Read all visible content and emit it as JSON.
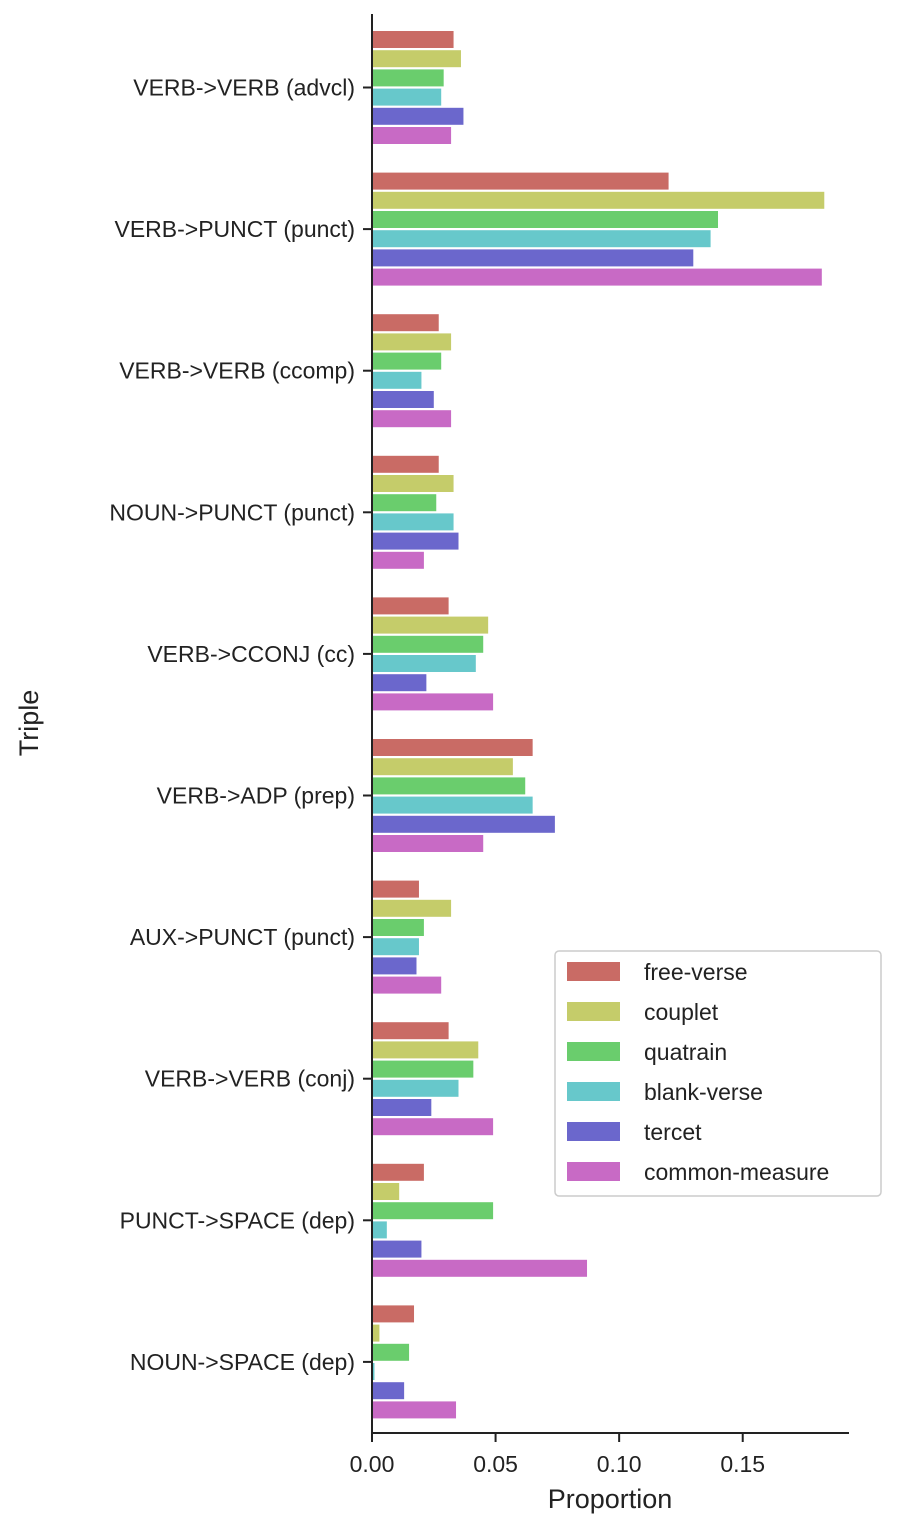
{
  "chart_data": {
    "type": "bar",
    "orientation": "horizontal",
    "xlabel": "Proportion",
    "ylabel": "Triple",
    "xlim": [
      0,
      0.193
    ],
    "xticks": [
      0.0,
      0.05,
      0.1,
      0.15
    ],
    "xtick_labels": [
      "0.00",
      "0.05",
      "0.10",
      "0.15"
    ],
    "grid": false,
    "legend_position": "lower-right",
    "categories": [
      "VERB->VERB (advcl)",
      "VERB->PUNCT (punct)",
      "VERB->VERB (ccomp)",
      "NOUN->PUNCT (punct)",
      "VERB->CCONJ (cc)",
      "VERB->ADP (prep)",
      "AUX->PUNCT (punct)",
      "VERB->VERB (conj)",
      "PUNCT->SPACE (dep)",
      "NOUN->SPACE (dep)"
    ],
    "series": [
      {
        "name": "free-verse",
        "color": "#c96b65",
        "values": [
          0.033,
          0.12,
          0.027,
          0.027,
          0.031,
          0.065,
          0.019,
          0.031,
          0.021,
          0.017
        ]
      },
      {
        "name": "couplet",
        "color": "#c5cc6a",
        "values": [
          0.036,
          0.183,
          0.032,
          0.033,
          0.047,
          0.057,
          0.032,
          0.043,
          0.011,
          0.003
        ]
      },
      {
        "name": "quatrain",
        "color": "#6acd6d",
        "values": [
          0.029,
          0.14,
          0.028,
          0.026,
          0.045,
          0.062,
          0.021,
          0.041,
          0.049,
          0.015
        ]
      },
      {
        "name": "blank-verse",
        "color": "#67c8cb",
        "values": [
          0.028,
          0.137,
          0.02,
          0.033,
          0.042,
          0.065,
          0.019,
          0.035,
          0.006,
          0.001
        ]
      },
      {
        "name": "tercet",
        "color": "#6b67cc",
        "values": [
          0.037,
          0.13,
          0.025,
          0.035,
          0.022,
          0.074,
          0.018,
          0.024,
          0.02,
          0.013
        ]
      },
      {
        "name": "common-measure",
        "color": "#c86ac5",
        "values": [
          0.032,
          0.182,
          0.032,
          0.021,
          0.049,
          0.045,
          0.028,
          0.049,
          0.087,
          0.034
        ]
      }
    ]
  }
}
